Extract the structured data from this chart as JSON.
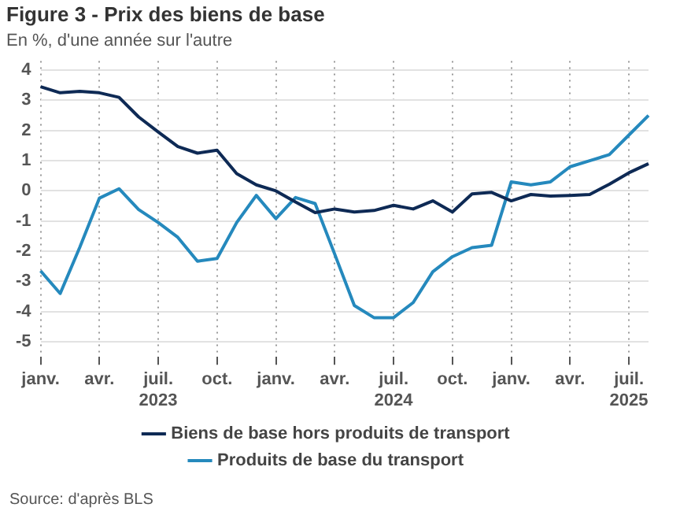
{
  "chart_data": {
    "type": "line",
    "title": "Figure 3 - Prix des biens de base",
    "subtitle": "En %, d'une année sur l'autre",
    "categories": [
      "janv.",
      null,
      null,
      "avr.",
      null,
      null,
      "juil. 2023",
      null,
      null,
      "oct.",
      null,
      null,
      "janv.",
      null,
      null,
      "avr.",
      null,
      null,
      "juil. 2024",
      null,
      null,
      "oct.",
      null,
      null,
      "janv.",
      null,
      null,
      "avr.",
      null,
      null,
      "juil. 2025",
      null
    ],
    "series": [
      {
        "name": "Biens de base hors produits de transport",
        "color": "#0e2a55",
        "values": [
          3.45,
          3.25,
          3.3,
          3.25,
          3.1,
          2.45,
          1.95,
          1.47,
          1.25,
          1.35,
          0.57,
          0.2,
          0.0,
          -0.37,
          -0.72,
          -0.6,
          -0.7,
          -0.65,
          -0.48,
          -0.6,
          -0.33,
          -0.7,
          -0.1,
          -0.05,
          -0.33,
          -0.12,
          -0.17,
          -0.15,
          -0.12,
          0.22,
          0.6,
          0.9
        ]
      },
      {
        "name": "Produits de base du transport",
        "color": "#2589bd",
        "values": [
          -2.65,
          -3.4,
          -1.87,
          -0.24,
          0.07,
          -0.62,
          -1.05,
          -1.54,
          -2.33,
          -2.24,
          -1.05,
          -0.15,
          -0.92,
          -0.22,
          -0.42,
          -2.1,
          -3.8,
          -4.2,
          -4.2,
          -3.7,
          -2.68,
          -2.18,
          -1.88,
          -1.8,
          0.3,
          0.2,
          0.3,
          0.8,
          1.0,
          1.2,
          1.85,
          2.5
        ]
      }
    ],
    "ylim": [
      -5.5,
      4.3
    ],
    "yticks": [
      -5,
      -4,
      -3,
      -2,
      -1,
      0,
      1,
      2,
      3,
      4
    ],
    "grid": true,
    "legend": "bottom",
    "marker": "none",
    "line_style": "solid",
    "annotations": [
      "Source: d'après BLS"
    ]
  }
}
